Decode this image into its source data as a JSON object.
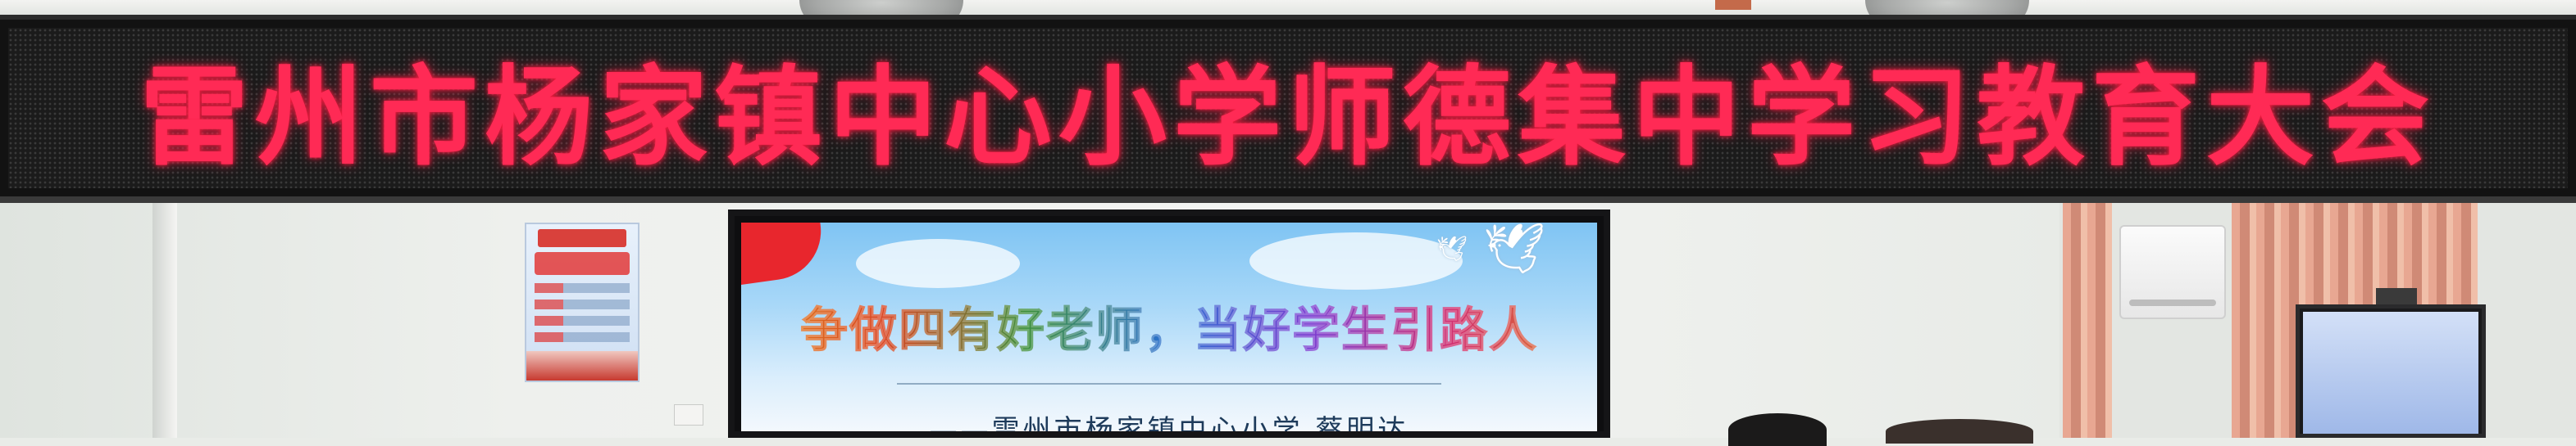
{
  "led_banner": {
    "text": "雷州市杨家镇中心小学师德集中学习教育大会",
    "color": "#ff2a55"
  },
  "projection_slide": {
    "title": "争做四有好老师，当好学生引路人",
    "author_line": "——雷州市杨家镇中心小学   蔡明达"
  },
  "wall_poster": {
    "icon": "core-values-poster"
  },
  "icons": [
    "ceiling-fan-icon",
    "dove-icon",
    "air-conditioner-icon",
    "tv-icon"
  ]
}
